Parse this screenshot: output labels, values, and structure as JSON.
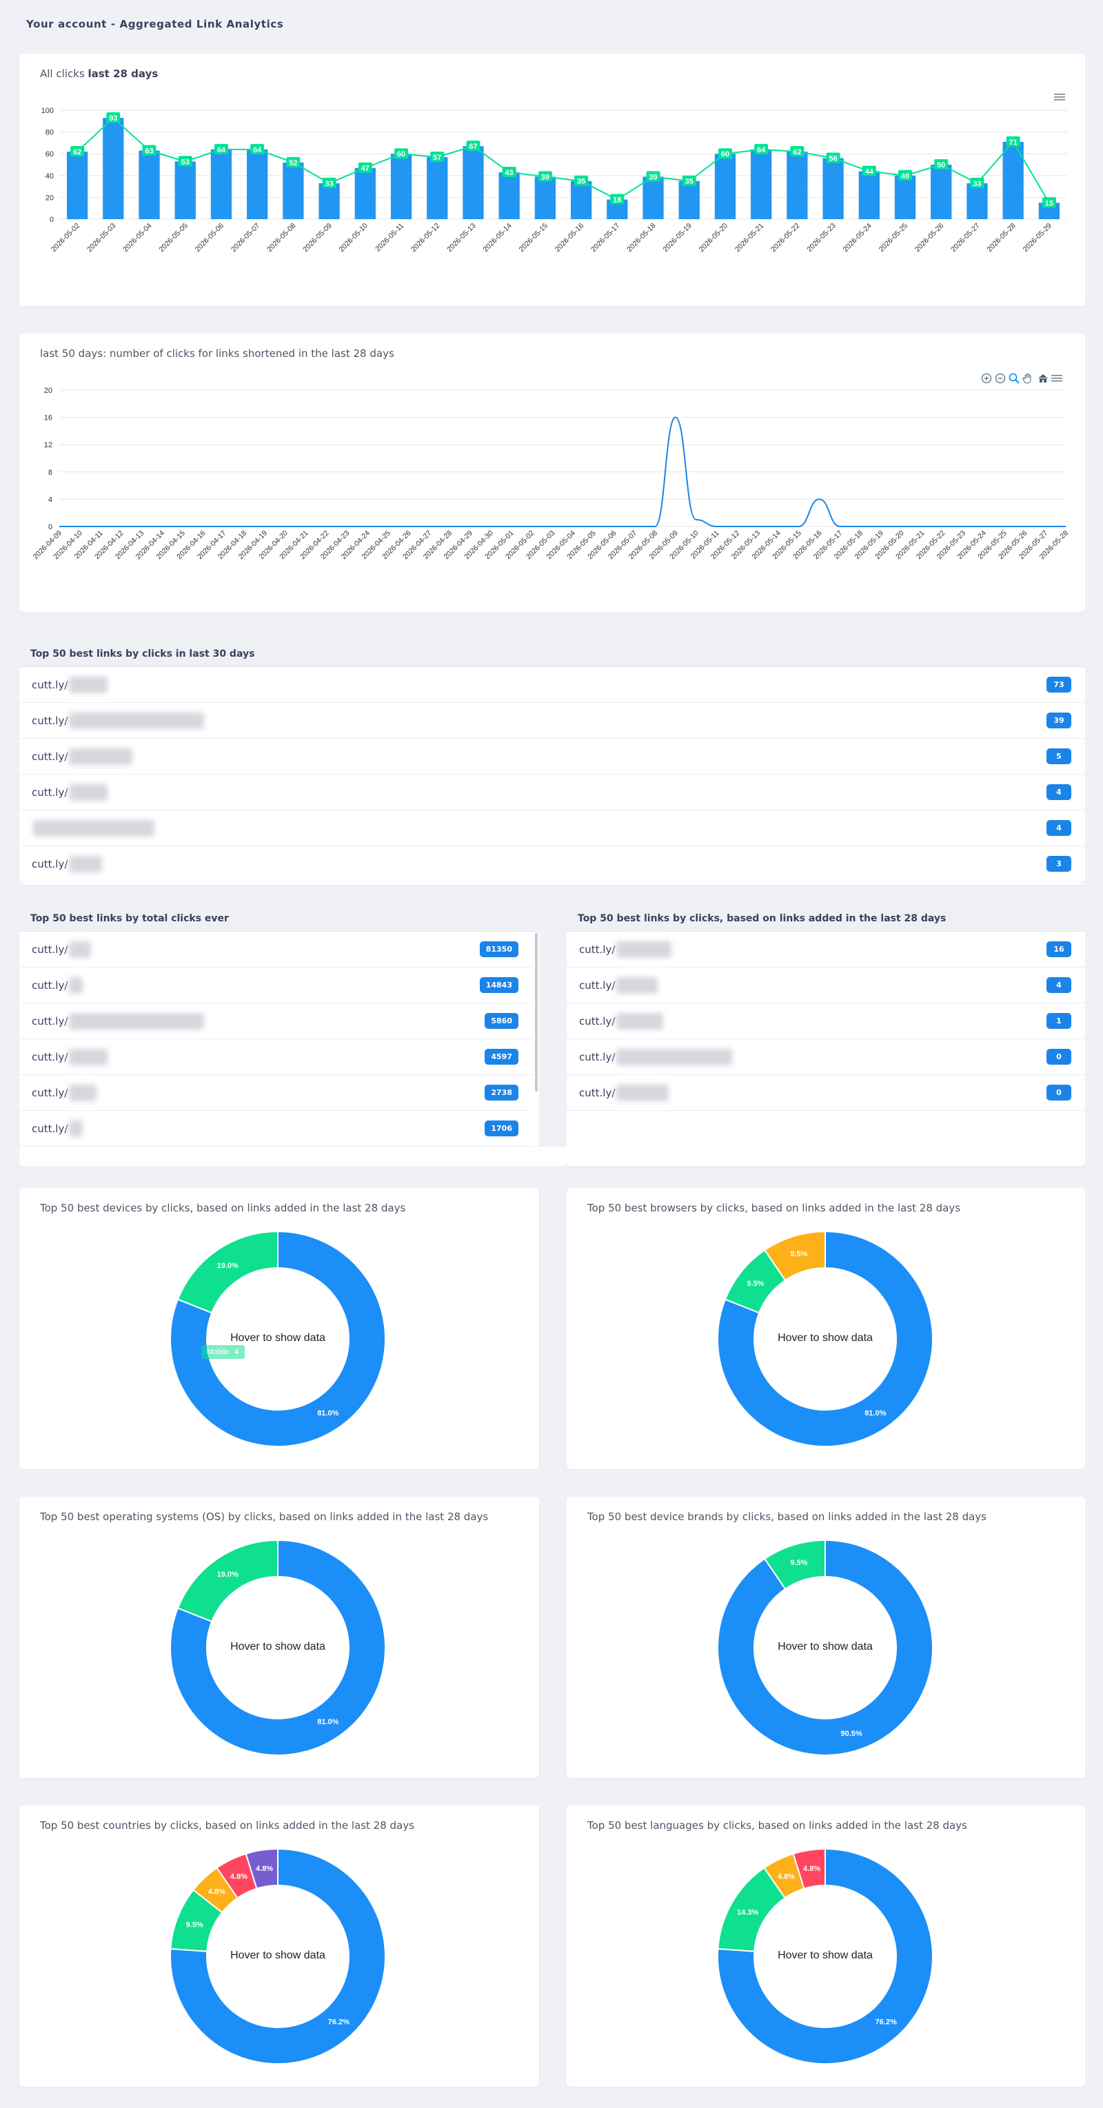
{
  "page": {
    "title": "Your account - Aggregated Link Analytics"
  },
  "bar_chart": {
    "title_prefix": "All clicks",
    "title_bold": "last 28 days"
  },
  "line_chart": {
    "title": "last 50 days: number of clicks for links shortened in the last 28 days"
  },
  "chart_data": [
    {
      "type": "bar",
      "categories": [
        "2026-05-02",
        "2026-05-03",
        "2026-05-04",
        "2026-05-05",
        "2026-05-06",
        "2026-05-07",
        "2026-05-08",
        "2026-05-09",
        "2026-05-10",
        "2026-05-11",
        "2026-05-12",
        "2026-05-13",
        "2026-05-14",
        "2026-05-15",
        "2026-05-16",
        "2026-05-17",
        "2026-05-18",
        "2026-05-19",
        "2026-05-20",
        "2026-05-21",
        "2026-05-22",
        "2026-05-23",
        "2026-05-24",
        "2026-05-25",
        "2026-05-26",
        "2026-05-27",
        "2026-05-28",
        "2026-05-29"
      ],
      "values": [
        62,
        93,
        63,
        53,
        64,
        64,
        52,
        33,
        47,
        60,
        57,
        67,
        43,
        39,
        35,
        18,
        39,
        35,
        60,
        64,
        62,
        56,
        44,
        40,
        50,
        33,
        71,
        15
      ],
      "ylim": [
        0,
        100
      ],
      "yticks": [
        0,
        20,
        40,
        60,
        80,
        100
      ],
      "bar_color": "#2196f3",
      "line_color": "#00e396"
    },
    {
      "type": "line",
      "x": [
        "2026-04-09",
        "2026-04-10",
        "2026-04-11",
        "2026-04-12",
        "2026-04-13",
        "2026-04-14",
        "2026-04-15",
        "2026-04-16",
        "2026-04-17",
        "2026-04-18",
        "2026-04-19",
        "2026-04-20",
        "2026-04-21",
        "2026-04-22",
        "2026-04-23",
        "2026-04-24",
        "2026-04-25",
        "2026-04-26",
        "2026-04-27",
        "2026-04-28",
        "2026-04-29",
        "2026-04-30",
        "2026-05-01",
        "2026-05-02",
        "2026-05-03",
        "2026-05-04",
        "2026-05-05",
        "2026-05-06",
        "2026-05-07",
        "2026-05-08",
        "2026-05-09",
        "2026-05-10",
        "2026-05-11",
        "2026-05-12",
        "2026-05-13",
        "2026-05-14",
        "2026-05-15",
        "2026-05-16",
        "2026-05-17",
        "2026-05-18",
        "2026-05-19",
        "2026-05-20",
        "2026-05-21",
        "2026-05-22",
        "2026-05-23",
        "2026-05-24",
        "2026-05-25",
        "2026-05-26",
        "2026-05-27",
        "2026-05-28"
      ],
      "y": [
        0,
        0,
        0,
        0,
        0,
        0,
        0,
        0,
        0,
        0,
        0,
        0,
        0,
        0,
        0,
        0,
        0,
        0,
        0,
        0,
        0,
        0,
        0,
        0,
        0,
        0,
        0,
        0,
        0,
        0,
        16,
        1,
        0,
        0,
        0,
        0,
        0,
        4,
        0,
        0,
        0,
        0,
        0,
        0,
        0,
        0,
        0,
        0,
        0,
        0
      ],
      "ylim": [
        0,
        20
      ],
      "yticks": [
        0,
        4,
        8,
        12,
        16,
        20
      ],
      "line_color": "#1b84e8"
    },
    {
      "type": "pie",
      "title": "Top 50 best devices by clicks, based on links added in the last 28 days",
      "center_text": "Hover to show data",
      "slices": [
        {
          "value": 81.0,
          "label": "81.0%",
          "color": "#1b8ef8"
        },
        {
          "value": 19.0,
          "label": "19.0%",
          "color": "#0ee08f"
        }
      ],
      "tooltip": {
        "label": "Mobile",
        "value": "4"
      }
    },
    {
      "type": "pie",
      "title": "Top 50 best browsers by clicks, based on links added in the last 28 days",
      "center_text": "Hover to show data",
      "slices": [
        {
          "value": 81.0,
          "label": "81.0%",
          "color": "#1b8ef8"
        },
        {
          "value": 9.5,
          "label": "9.5%",
          "color": "#0ee08f"
        },
        {
          "value": 9.5,
          "label": "9.5%",
          "color": "#feb019"
        }
      ]
    },
    {
      "type": "pie",
      "title": "Top 50 best operating systems (OS) by clicks, based on links added in the last 28 days",
      "center_text": "Hover to show data",
      "slices": [
        {
          "value": 81.0,
          "label": "81.0%",
          "color": "#1b8ef8"
        },
        {
          "value": 19.0,
          "label": "19.0%",
          "color": "#0ee08f"
        }
      ]
    },
    {
      "type": "pie",
      "title": "Top 50 best device brands by clicks, based on links added in the last 28 days",
      "center_text": "Hover to show data",
      "slices": [
        {
          "value": 90.5,
          "label": "90.5%",
          "color": "#1b8ef8"
        },
        {
          "value": 9.5,
          "label": "9.5%",
          "color": "#0ee08f"
        }
      ]
    },
    {
      "type": "pie",
      "title": "Top 50 best countries by clicks, based on links added in the last 28 days",
      "center_text": "Hover to show data",
      "slices": [
        {
          "value": 76.2,
          "label": "76.2%",
          "color": "#1b8ef8"
        },
        {
          "value": 9.5,
          "label": "9.5%",
          "color": "#0ee08f"
        },
        {
          "value": 4.8,
          "label": "4.8%",
          "color": "#feb019"
        },
        {
          "value": 4.8,
          "label": "4.8%",
          "color": "#ff4560"
        },
        {
          "value": 4.8,
          "label": "4.8%",
          "color": "#775dd0"
        }
      ]
    },
    {
      "type": "pie",
      "title": "Top 50 best languages by clicks, based on links added in the last 28 days",
      "center_text": "Hover to show data",
      "slices": [
        {
          "value": 76.2,
          "label": "76.2%",
          "color": "#1b8ef8"
        },
        {
          "value": 14.3,
          "label": "14.3%",
          "color": "#0ee08f"
        },
        {
          "value": 4.8,
          "label": "4.8%",
          "color": "#feb019"
        },
        {
          "value": 4.8,
          "label": "4.8%",
          "color": "#ff4560"
        }
      ]
    }
  ],
  "top30": {
    "title": "Top 50 best links by clicks in last 30 days",
    "rows": [
      {
        "link": "cutt.ly/",
        "count": "73"
      },
      {
        "link": "cutt.ly/",
        "count": "39"
      },
      {
        "link": "cutt.ly/",
        "count": "5"
      },
      {
        "link": "cutt.ly/",
        "count": "4"
      },
      {
        "link": "",
        "count": "4"
      },
      {
        "link": "cutt.ly/",
        "count": "3"
      }
    ]
  },
  "top_ever": {
    "title": "Top 50 best links by total clicks ever",
    "rows": [
      {
        "link": "cutt.ly/",
        "count": "81350"
      },
      {
        "link": "cutt.ly/",
        "count": "14843"
      },
      {
        "link": "cutt.ly/",
        "count": "5860"
      },
      {
        "link": "cutt.ly/",
        "count": "4597"
      },
      {
        "link": "cutt.ly/",
        "count": "2738"
      },
      {
        "link": "cutt.ly/",
        "count": "1706"
      }
    ]
  },
  "top28": {
    "title": "Top 50 best links by clicks, based on links added in the last 28 days",
    "rows": [
      {
        "link": "cutt.ly/",
        "count": "16"
      },
      {
        "link": "cutt.ly/",
        "count": "4"
      },
      {
        "link": "cutt.ly/",
        "count": "1"
      },
      {
        "link": "cutt.ly/",
        "count": "0"
      },
      {
        "link": "cutt.ly/",
        "count": "0"
      }
    ]
  }
}
